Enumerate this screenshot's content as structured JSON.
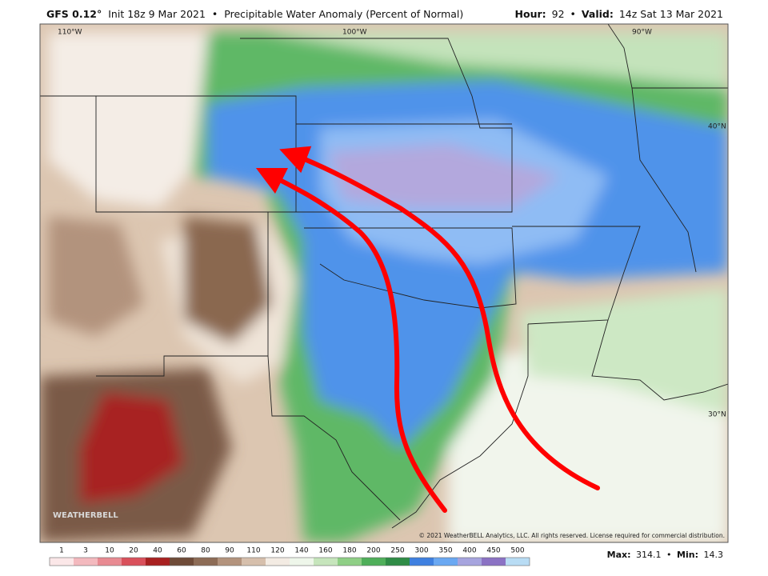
{
  "header": {
    "model": "GFS 0.12°",
    "init": "Init 18z 9 Mar 2021",
    "separator": "•",
    "product": "Precipitable Water Anomaly (Percent of Normal)",
    "hour_label": "Hour:",
    "hour": "92",
    "valid_label": "Valid:",
    "valid": "14z Sat 13 Mar 2021"
  },
  "map": {
    "lon_labels": [
      "110°W",
      "100°W",
      "90°W"
    ],
    "lat_labels": [
      "40°N",
      "30°N"
    ],
    "logo": "WEATHERBELL",
    "copyright": "© 2021 WeatherBELL Analytics, LLC. All rights reserved. License required for commercial distribution."
  },
  "colorbar": {
    "labels": [
      "1",
      "3",
      "10",
      "20",
      "40",
      "60",
      "80",
      "90",
      "110",
      "120",
      "140",
      "160",
      "180",
      "200",
      "250",
      "300",
      "350",
      "400",
      "450",
      "500"
    ],
    "colors": [
      "#fbe7e8",
      "#f3b9be",
      "#e88a92",
      "#d9505b",
      "#a82020",
      "#6f4b38",
      "#8d6c56",
      "#b3937d",
      "#d6bfac",
      "#f3ebe3",
      "#eef6ea",
      "#c6e5bc",
      "#8fcf86",
      "#4faf5a",
      "#2f8c46",
      "#3f80e0",
      "#6aa8f2",
      "#a6a4de",
      "#8b72c4",
      "#b8dcf4"
    ]
  },
  "stats": {
    "max_label": "Max:",
    "max": "314.1",
    "separator": "•",
    "min_label": "Min:",
    "min": "14.3"
  }
}
